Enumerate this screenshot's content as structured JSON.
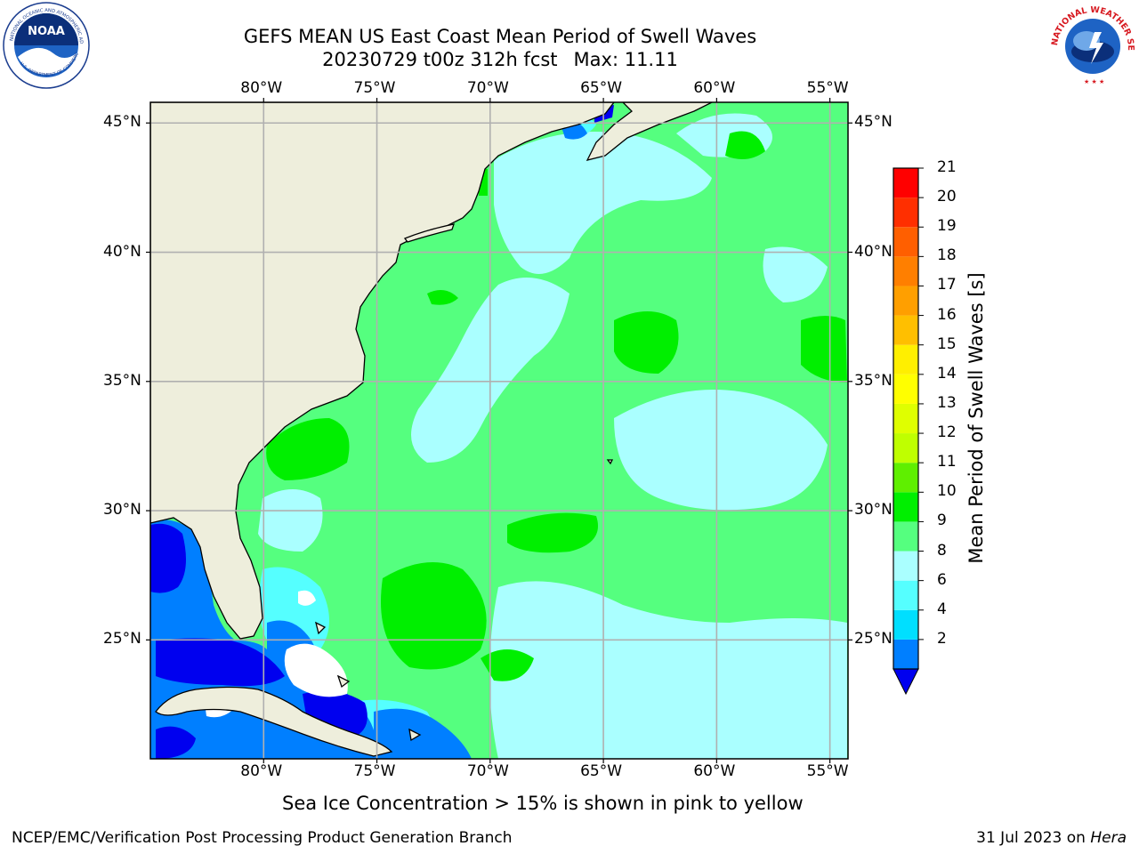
{
  "header": {
    "title_line1": "GEFS MEAN US East Coast Mean Period of Swell Waves",
    "title_line2_date": "20230729 t00z 312h fcst",
    "title_line2_max": "Max: 11.11"
  },
  "logos": {
    "left": {
      "name": "NOAA",
      "ring_text": "NATIONAL OCEANIC AND ATMOSPHERIC ADMINISTRATION",
      "ring_text_bottom": "U.S. DEPARTMENT OF COMMERCE"
    },
    "right": {
      "name": "NATIONAL WEATHER SERVICE"
    }
  },
  "map": {
    "projection": "PlateCarree",
    "lon_range": [
      -85,
      -54.2
    ],
    "lat_range": [
      20.4,
      45.8
    ],
    "lon_ticks": [
      "80°W",
      "75°W",
      "70°W",
      "65°W",
      "60°W",
      "55°W"
    ],
    "lat_ticks": [
      "45°N",
      "40°N",
      "35°N",
      "30°N",
      "25°N"
    ],
    "colors": {
      "land": "#eeeedc",
      "gridline": "#b0b0b0",
      "coastline": "#000000",
      "missing": "#ffffff"
    },
    "regions": [
      {
        "name": "swell period 9-10 s (background)",
        "color": "#55ff7f"
      },
      {
        "name": "swell period 10-11 s",
        "color": "#00ef00"
      },
      {
        "name": "swell period 8-9 s",
        "color": "#aaffff"
      },
      {
        "name": "swell period 6-8 s",
        "color": "#55ffff"
      },
      {
        "name": "swell period 2-4 s",
        "color": "#007fff"
      },
      {
        "name": "swell period < 2 s",
        "color": "#0000ef"
      }
    ]
  },
  "colorbar": {
    "label": "Mean Period of Swell Waves [s]",
    "tick_labels": [
      "21",
      "20",
      "19",
      "18",
      "17",
      "16",
      "15",
      "14",
      "13",
      "12",
      "11",
      "10",
      "9",
      "8",
      "6",
      "4",
      "2"
    ],
    "bins": [
      {
        "from": 2,
        "to": 4,
        "color": "#007fff"
      },
      {
        "from": 4,
        "to": 6,
        "color": "#00dfff"
      },
      {
        "from": 6,
        "to": 8,
        "color": "#55ffff"
      },
      {
        "from": 8,
        "to": 9,
        "color": "#aaffff"
      },
      {
        "from": 9,
        "to": 10,
        "color": "#55ff7f"
      },
      {
        "from": 10,
        "to": 11,
        "color": "#00ef00"
      },
      {
        "from": 11,
        "to": 12,
        "color": "#5fef00"
      },
      {
        "from": 12,
        "to": 13,
        "color": "#bfff00"
      },
      {
        "from": 13,
        "to": 14,
        "color": "#dfff00"
      },
      {
        "from": 14,
        "to": 15,
        "color": "#ffff00"
      },
      {
        "from": 15,
        "to": 16,
        "color": "#ffef00"
      },
      {
        "from": 16,
        "to": 17,
        "color": "#ffbf00"
      },
      {
        "from": 17,
        "to": 18,
        "color": "#ff9f00"
      },
      {
        "from": 18,
        "to": 19,
        "color": "#ff7f00"
      },
      {
        "from": 19,
        "to": 20,
        "color": "#ff5f00"
      },
      {
        "from": 20,
        "to": 21,
        "color": "#ff2f00"
      },
      {
        "from": 21,
        "to": 22,
        "color": "#ff0000"
      }
    ],
    "under_color": "#0000ef",
    "extend": "min"
  },
  "note": "Sea Ice Concentration > 15% is shown in pink to yellow",
  "footer": {
    "left": "NCEP/EMC/Verification Post Processing Product Generation Branch",
    "right_date": "31 Jul 2023 on",
    "right_host": "Hera"
  }
}
